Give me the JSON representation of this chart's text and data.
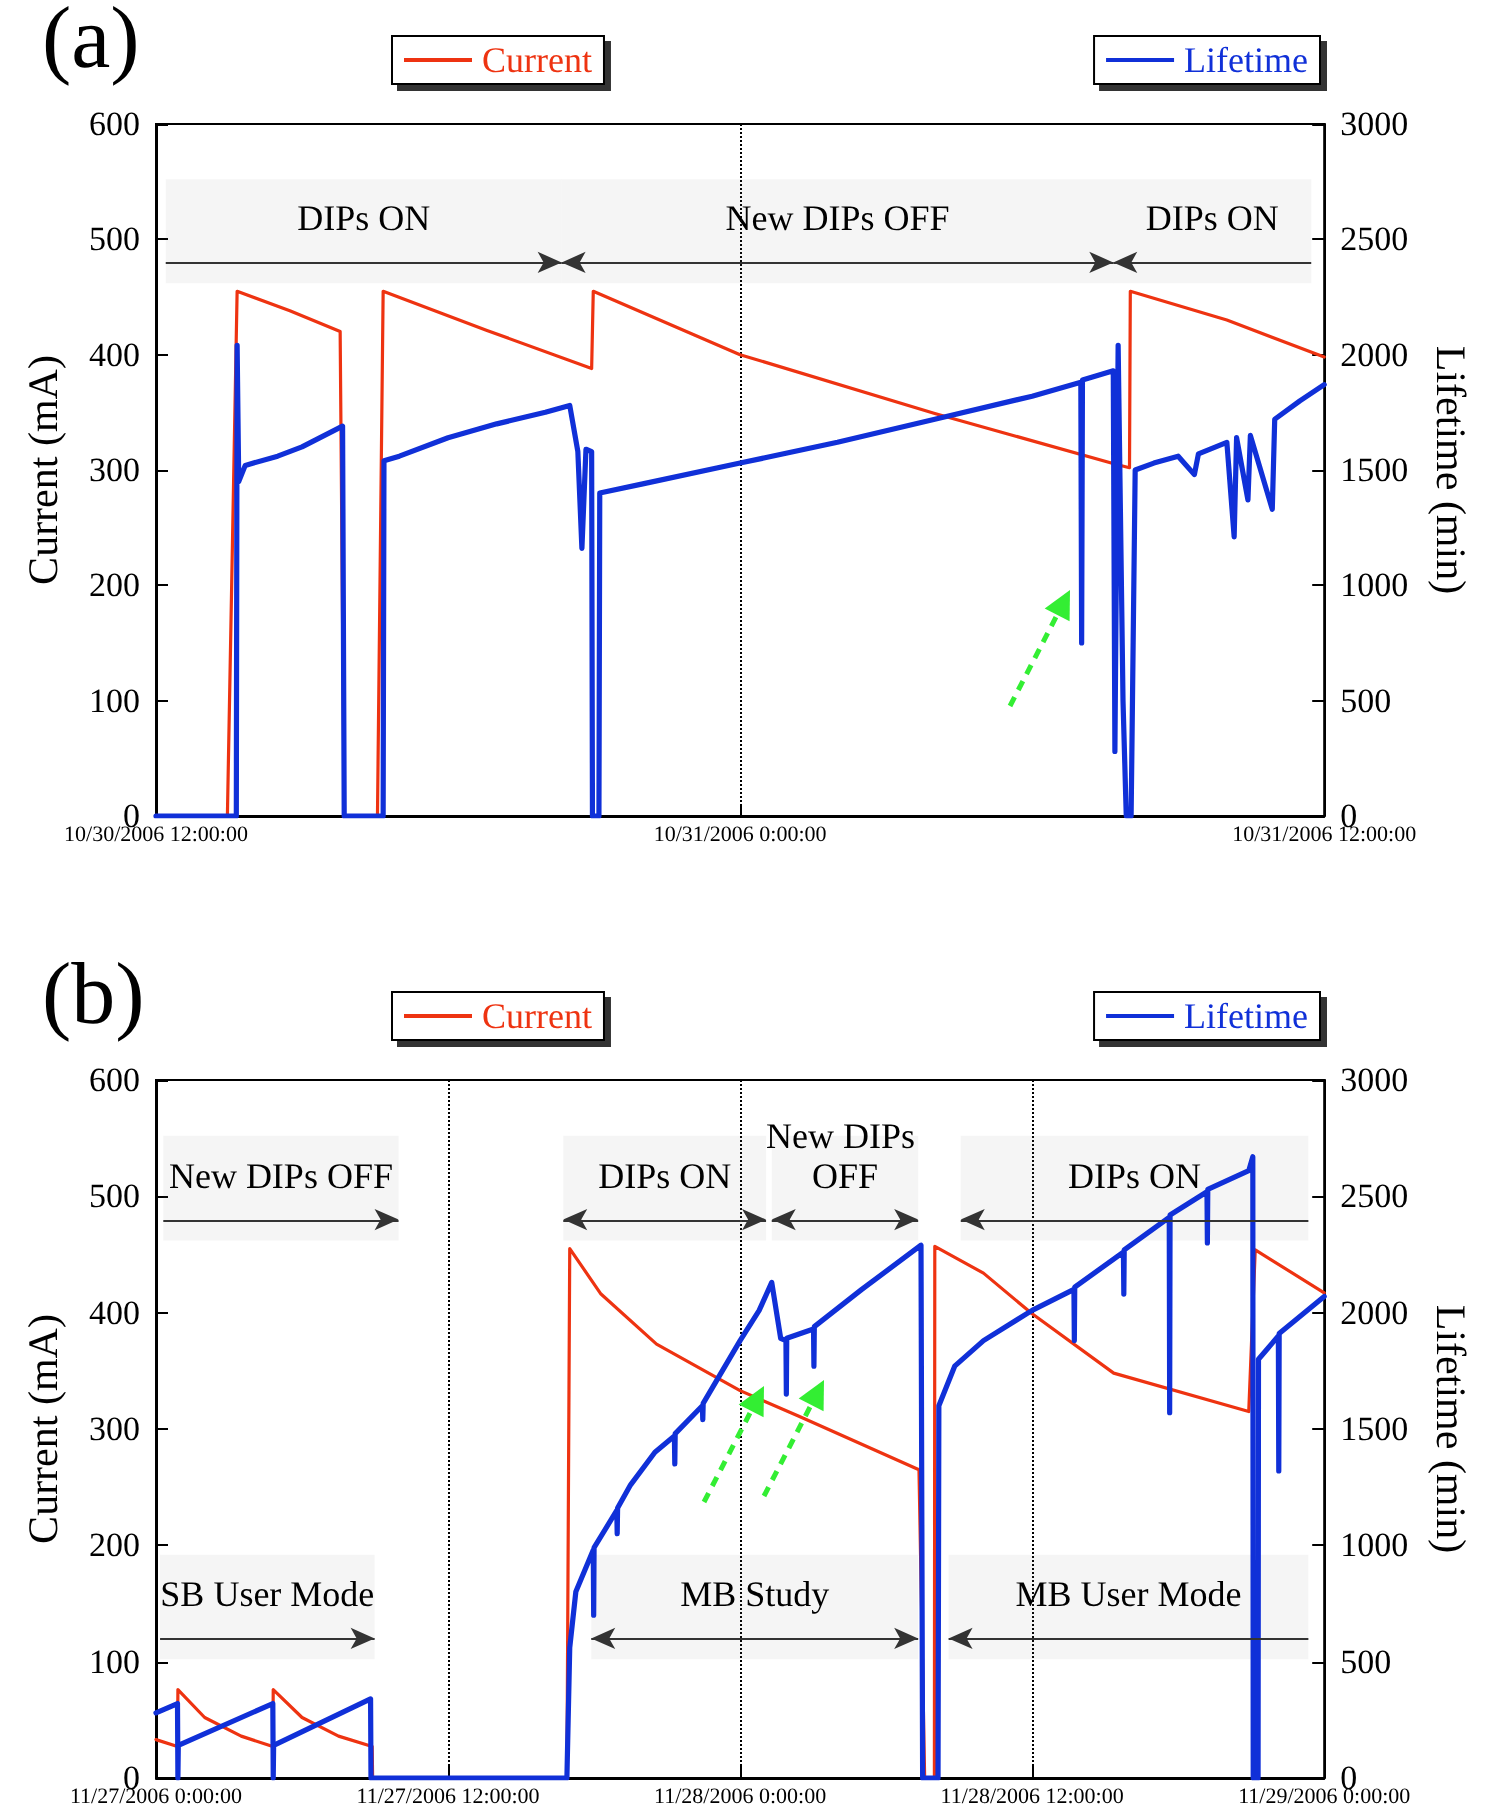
{
  "chart_data": [
    {
      "type": "line",
      "title": "(a)",
      "ylabel": "Current (mA)",
      "y2label": "Lifetime (min)",
      "xlim": [
        "2006-10-30T12:00",
        "2006-10-31T12:00"
      ],
      "xticks": [
        {
          "value": "2006-10-30T12:00",
          "label": "10/30/2006 12:00:00"
        },
        {
          "value": "2006-10-31T00:00",
          "label": "10/31/2006 0:00:00"
        },
        {
          "value": "2006-10-31T12:00",
          "label": "10/31/2006 12:00:00"
        }
      ],
      "ylim": [
        0,
        600
      ],
      "yticks": [
        0,
        100,
        200,
        300,
        400,
        500,
        600
      ],
      "y2lim": [
        0,
        3000
      ],
      "y2ticks": [
        0,
        500,
        1000,
        1500,
        2000,
        2500,
        3000
      ],
      "grid": "x",
      "legend": "top",
      "series": [
        {
          "name": "Current",
          "color": "#ee3311",
          "x": [
            "2006-10-30T12:00",
            "2006-10-30T13:28",
            "2006-10-30T13:40",
            "2006-10-30T14:45",
            "2006-10-30T15:47",
            "2006-10-30T15:52",
            "2006-10-30T16:33",
            "2006-10-30T16:40",
            "2006-10-30T18:48",
            "2006-10-30T20:57",
            "2006-10-30T20:59",
            "2006-10-31T00:00",
            "2006-10-31T04:00",
            "2006-10-31T07:43",
            "2006-10-31T08:00",
            "2006-10-31T08:01",
            "2006-10-31T10:00",
            "2006-10-31T12:00"
          ],
          "values": [
            0,
            0,
            455,
            438,
            420,
            0,
            0,
            455,
            421,
            388,
            455,
            400,
            349,
            305,
            302,
            455,
            430,
            398
          ]
        },
        {
          "name": "Lifetime",
          "color": "#1030d8",
          "axis": "y2",
          "x": [
            "2006-10-30T12:00",
            "2006-10-30T13:39",
            "2006-10-30T13:40",
            "2006-10-30T13:42",
            "2006-10-30T13:50",
            "2006-10-30T14:30",
            "2006-10-30T15:00",
            "2006-10-30T15:50",
            "2006-10-30T15:52",
            "2006-10-30T16:40",
            "2006-10-30T16:41",
            "2006-10-30T17:00",
            "2006-10-30T18:00",
            "2006-10-30T19:00",
            "2006-10-30T20:00",
            "2006-10-30T20:30",
            "2006-10-30T20:40",
            "2006-10-30T20:45",
            "2006-10-30T20:50",
            "2006-10-30T20:57",
            "2006-10-30T20:58",
            "2006-10-30T21:06",
            "2006-10-30T21:07",
            "2006-10-30T22:00",
            "2006-10-31T00:00",
            "2006-10-31T02:00",
            "2006-10-31T04:00",
            "2006-10-31T06:00",
            "2006-10-31T07:00",
            "2006-10-31T07:01",
            "2006-10-31T07:02",
            "2006-10-31T07:40",
            "2006-10-31T07:42",
            "2006-10-31T07:46",
            "2006-10-31T07:52",
            "2006-10-31T07:56",
            "2006-10-31T08:02",
            "2006-10-31T08:07",
            "2006-10-31T08:30",
            "2006-10-31T09:00",
            "2006-10-31T09:20",
            "2006-10-31T09:25",
            "2006-10-31T10:00",
            "2006-10-31T10:09",
            "2006-10-31T10:12",
            "2006-10-31T10:26",
            "2006-10-31T10:29",
            "2006-10-31T10:56",
            "2006-10-31T10:59",
            "2006-10-31T11:30",
            "2006-10-31T12:00"
          ],
          "values": [
            0,
            0,
            2040,
            1450,
            1520,
            1560,
            1600,
            1690,
            0,
            0,
            1540,
            1560,
            1640,
            1700,
            1750,
            1780,
            1580,
            1160,
            1590,
            1580,
            0,
            0,
            1400,
            1440,
            1530,
            1620,
            1720,
            1820,
            1880,
            750,
            1890,
            1930,
            280,
            2040,
            500,
            0,
            0,
            1500,
            1530,
            1560,
            1480,
            1570,
            1620,
            1210,
            1640,
            1370,
            1650,
            1330,
            1720,
            1800,
            1870
          ]
        }
      ],
      "bands": [
        {
          "axis": "x",
          "from": "2006-10-30T12:12",
          "to": "2006-10-30T20:20",
          "label": "DIPs ON"
        },
        {
          "axis": "x",
          "from": "2006-10-30T20:20",
          "to": "2006-10-31T07:40",
          "label": "New DIPs OFF"
        },
        {
          "axis": "x",
          "from": "2006-10-31T07:40",
          "to": "2006-10-31T11:44",
          "label": "DIPs ON"
        }
      ]
    },
    {
      "type": "line",
      "title": "(b)",
      "ylabel": "Current (mA)",
      "y2label": "Lifetime (min)",
      "xlim": [
        "2006-11-27T00:00",
        "2006-11-29T00:00"
      ],
      "xticks": [
        {
          "value": "2006-11-27T00:00",
          "label": "11/27/2006 0:00:00"
        },
        {
          "value": "2006-11-27T12:00",
          "label": "11/27/2006 12:00:00"
        },
        {
          "value": "2006-11-28T00:00",
          "label": "11/28/2006 0:00:00"
        },
        {
          "value": "2006-11-28T12:00",
          "label": "11/28/2006 12:00:00"
        },
        {
          "value": "2006-11-29T00:00",
          "label": "11/29/2006 0:00:00"
        }
      ],
      "ylim": [
        0,
        600
      ],
      "yticks": [
        0,
        100,
        200,
        300,
        400,
        500,
        600
      ],
      "y2lim": [
        0,
        3000
      ],
      "y2ticks": [
        0,
        500,
        1000,
        1500,
        2000,
        2500,
        3000
      ],
      "grid": "x",
      "legend": "top",
      "series": [
        {
          "name": "Current",
          "color": "#ee3311",
          "x": [
            "2006-11-27T00:00",
            "2006-11-27T00:53",
            "2006-11-27T00:54",
            "2006-11-27T02:00",
            "2006-11-27T03:30",
            "2006-11-27T04:48",
            "2006-11-27T04:49",
            "2006-11-27T06:00",
            "2006-11-27T07:30",
            "2006-11-27T08:53",
            "2006-11-27T08:54",
            "2006-11-27T16:53",
            "2006-11-27T17:00",
            "2006-11-27T18:17",
            "2006-11-27T20:34",
            "2006-11-28T00:00",
            "2006-11-28T02:25",
            "2006-11-28T07:21",
            "2006-11-28T07:35",
            "2006-11-28T07:59",
            "2006-11-28T08:00",
            "2006-11-28T10:00",
            "2006-11-28T12:00",
            "2006-11-28T15:21",
            "2006-11-28T20:54",
            "2006-11-28T21:10",
            "2006-11-29T00:00"
          ],
          "values": [
            33,
            27,
            76,
            52,
            36,
            27,
            76,
            52,
            36,
            27,
            0,
            0,
            455,
            416,
            373,
            333,
            311,
            265,
            0,
            0,
            457,
            434,
            399,
            348,
            315,
            454,
            417
          ]
        },
        {
          "name": "Lifetime",
          "color": "#1030d8",
          "axis": "y2",
          "x": [
            "2006-11-27T00:00",
            "2006-11-27T00:53",
            "2006-11-27T00:54",
            "2006-11-27T00:55",
            "2006-11-27T04:48",
            "2006-11-27T04:49",
            "2006-11-27T04:50",
            "2006-11-27T08:49",
            "2006-11-27T08:50",
            "2006-11-27T16:53",
            "2006-11-27T17:00",
            "2006-11-27T17:15",
            "2006-11-27T17:58",
            "2006-11-27T17:59",
            "2006-11-27T18:00",
            "2006-11-27T18:56",
            "2006-11-27T18:57",
            "2006-11-27T18:58",
            "2006-11-27T19:30",
            "2006-11-27T20:30",
            "2006-11-27T21:18",
            "2006-11-27T21:19",
            "2006-11-27T21:20",
            "2006-11-27T22:27",
            "2006-11-27T22:28",
            "2006-11-27T22:29",
            "2006-11-28T00:00",
            "2006-11-28T00:47",
            "2006-11-28T01:18",
            "2006-11-28T01:40",
            "2006-11-28T01:53",
            "2006-11-28T01:54",
            "2006-11-28T01:55",
            "2006-11-28T03:01",
            "2006-11-28T03:02",
            "2006-11-28T03:03",
            "2006-11-28T05:00",
            "2006-11-28T07:26",
            "2006-11-28T07:30",
            "2006-11-28T08:08",
            "2006-11-28T08:10",
            "2006-11-28T08:49",
            "2006-11-28T10:00",
            "2006-11-28T12:00",
            "2006-11-28T13:43",
            "2006-11-28T13:44",
            "2006-11-28T13:45",
            "2006-11-28T15:45",
            "2006-11-28T15:46",
            "2006-11-28T15:47",
            "2006-11-28T17:38",
            "2006-11-28T17:39",
            "2006-11-28T17:40",
            "2006-11-28T19:11",
            "2006-11-28T19:12",
            "2006-11-28T19:13",
            "2006-11-28T20:54",
            "2006-11-28T21:04",
            "2006-11-28T21:05",
            "2006-11-28T21:17",
            "2006-11-28T21:18",
            "2006-11-28T22:07",
            "2006-11-28T22:08",
            "2006-11-28T22:09",
            "2006-11-29T00:00"
          ],
          "values": [
            280,
            320,
            0,
            140,
            320,
            0,
            140,
            340,
            0,
            0,
            560,
            800,
            980,
            700,
            990,
            1150,
            1050,
            1160,
            1260,
            1400,
            1470,
            1350,
            1480,
            1600,
            1540,
            1610,
            1880,
            2010,
            2130,
            1890,
            1880,
            1650,
            1890,
            1930,
            1770,
            1940,
            2100,
            2290,
            0,
            0,
            1600,
            1770,
            1880,
            2010,
            2100,
            1880,
            2110,
            2260,
            2080,
            2270,
            2410,
            1570,
            2420,
            2520,
            2300,
            2530,
            2610,
            2670,
            0,
            0,
            1800,
            1900,
            1320,
            1910,
            2070
          ]
        }
      ],
      "bands": [
        {
          "axis": "x",
          "from": "2006-11-27T00:18",
          "to": "2006-11-27T09:58",
          "label": "New DIPs OFF"
        },
        {
          "axis": "x",
          "from": "2006-11-27T16:44",
          "to": "2006-11-28T01:04",
          "label": "DIPs ON"
        },
        {
          "axis": "x",
          "from": "2006-11-28T01:18",
          "to": "2006-11-28T07:19",
          "label": "New DIPs OFF"
        },
        {
          "axis": "x",
          "from": "2006-11-28T09:04",
          "to": "2006-11-28T23:21",
          "label": "DIPs ON"
        },
        {
          "axis": "x",
          "from": "2006-11-27T00:10",
          "to": "2006-11-27T08:59",
          "label": "SB User Mode"
        },
        {
          "axis": "x",
          "from": "2006-11-27T17:53",
          "to": "2006-11-28T07:19",
          "label": "MB Study"
        },
        {
          "axis": "x",
          "from": "2006-11-28T08:34",
          "to": "2006-11-28T23:21",
          "label": "MB User Mode"
        }
      ]
    }
  ]
}
